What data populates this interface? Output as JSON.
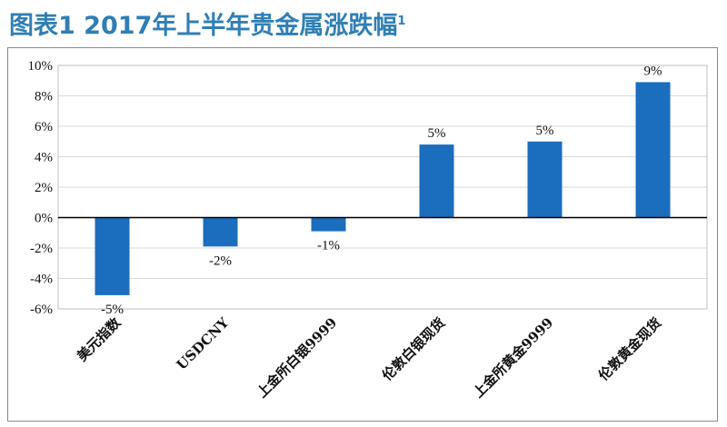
{
  "title": {
    "main": "图表1 2017年上半年贵金属涨跌幅",
    "sup": "1"
  },
  "chart_data": {
    "type": "bar",
    "categories": [
      "美元指数",
      "USDCNY",
      "上金所白银9999",
      "伦敦白银现货",
      "上金所黄金9999",
      "伦敦黄金现货"
    ],
    "values": [
      -5.1,
      -1.9,
      -0.9,
      4.8,
      5.0,
      8.9
    ],
    "data_labels": [
      "-5%",
      "-2%",
      "-1%",
      "5%",
      "5%",
      "9%"
    ],
    "y_ticks": [
      "10%",
      "8%",
      "6%",
      "4%",
      "2%",
      "0%",
      "-2%",
      "-4%",
      "-6%"
    ],
    "ylim": [
      -6,
      10
    ],
    "grid": true,
    "bar_color": "#1b6dbd"
  }
}
